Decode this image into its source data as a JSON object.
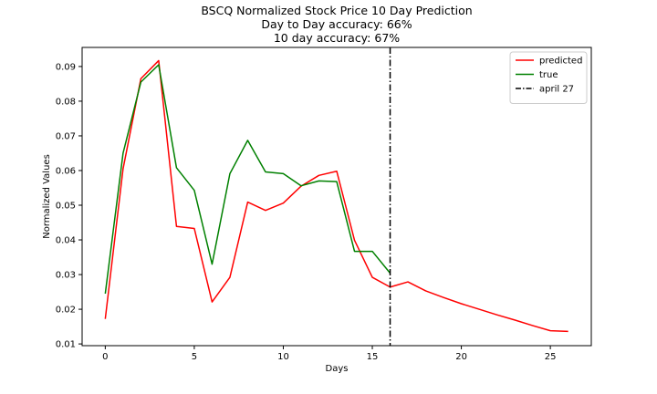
{
  "chart_data": {
    "type": "line",
    "title_lines": [
      "BSCQ Normalized Stock Price 10 Day Prediction",
      "Day to Day accuracy: 66%",
      "10 day accuracy: 67%"
    ],
    "xlabel": "Days",
    "ylabel": "Normalized Values",
    "xlim": [
      -1.3,
      27.3
    ],
    "ylim": [
      0.0095,
      0.0955
    ],
    "xticks": [
      0,
      5,
      10,
      15,
      20,
      25
    ],
    "yticks": [
      0.01,
      0.02,
      0.03,
      0.04,
      0.05,
      0.06,
      0.07,
      0.08,
      0.09
    ],
    "grid": false,
    "legend_position": "top-right",
    "series": [
      {
        "name": "predicted",
        "color": "#ff0000",
        "x": [
          0,
          1,
          2,
          3,
          4,
          5,
          6,
          7,
          8,
          9,
          10,
          11,
          12,
          13,
          14,
          15,
          16,
          17,
          18,
          19,
          20,
          21,
          22,
          23,
          24,
          25,
          26
        ],
        "values": [
          0.0172,
          0.0605,
          0.0865,
          0.0917,
          0.0439,
          0.0433,
          0.0221,
          0.0292,
          0.0509,
          0.0485,
          0.0506,
          0.0555,
          0.0586,
          0.0598,
          0.0399,
          0.0292,
          0.0264,
          0.0279,
          0.0253,
          0.0234,
          0.0216,
          0.02,
          0.0184,
          0.0169,
          0.0153,
          0.0138,
          0.0136
        ]
      },
      {
        "name": "true",
        "color": "#008000",
        "x": [
          0,
          1,
          2,
          3,
          4,
          5,
          6,
          7,
          8,
          9,
          10,
          11,
          12,
          13,
          14,
          15,
          16
        ],
        "values": [
          0.0245,
          0.065,
          0.0855,
          0.0905,
          0.0608,
          0.0543,
          0.033,
          0.0591,
          0.0687,
          0.0596,
          0.0591,
          0.0556,
          0.057,
          0.0568,
          0.0367,
          0.0367,
          0.0304
        ]
      }
    ],
    "vline": {
      "name": "april 27",
      "x": 16,
      "color": "#000000",
      "style": "dash-dot"
    }
  }
}
